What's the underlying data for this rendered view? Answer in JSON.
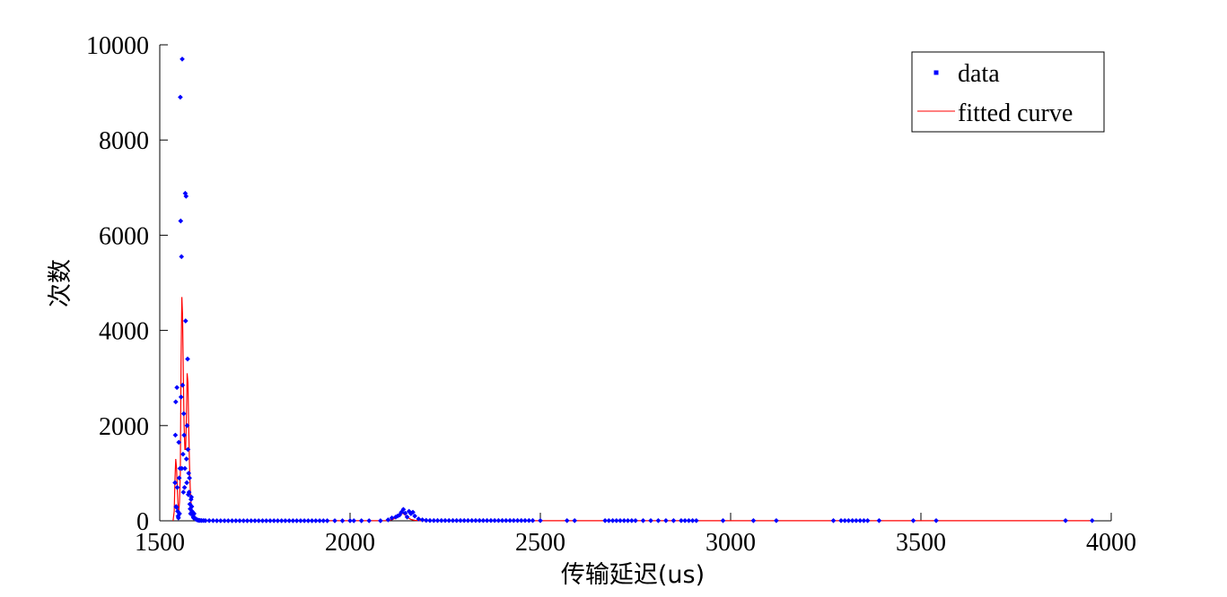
{
  "chart_data": {
    "type": "scatter",
    "title": "",
    "xlabel": "传输延迟(us)",
    "ylabel": "次数",
    "xlim": [
      1500,
      4000
    ],
    "ylim": [
      0,
      10000
    ],
    "xticks": [
      1500,
      2000,
      2500,
      3000,
      3500,
      4000
    ],
    "yticks": [
      0,
      2000,
      4000,
      6000,
      8000,
      10000
    ],
    "grid": false,
    "legend_position": "top-right",
    "colors": {
      "data": "#0000ff",
      "fitted_curve": "#ff0000",
      "axes": "#000000",
      "background": "#ffffff"
    },
    "series": [
      {
        "name": "data",
        "style": "markers",
        "x": [
          1540,
          1541,
          1542,
          1543,
          1544,
          1545,
          1546,
          1547,
          1548,
          1549,
          1550,
          1551,
          1552,
          1553,
          1554,
          1555,
          1556,
          1557,
          1558,
          1559,
          1560,
          1561,
          1562,
          1563,
          1564,
          1565,
          1566,
          1567,
          1568,
          1569,
          1570,
          1571,
          1572,
          1573,
          1574,
          1575,
          1576,
          1577,
          1578,
          1579,
          1580,
          1581,
          1582,
          1583,
          1584,
          1585,
          1586,
          1587,
          1588,
          1589,
          1590,
          1592,
          1594,
          1596,
          1598,
          1600,
          1603,
          1606,
          1610,
          1615,
          1620,
          1630,
          1640,
          1650,
          1660,
          1670,
          1680,
          1690,
          1700,
          1710,
          1720,
          1730,
          1740,
          1750,
          1760,
          1770,
          1780,
          1790,
          1800,
          1810,
          1820,
          1830,
          1840,
          1850,
          1860,
          1870,
          1880,
          1890,
          1900,
          1910,
          1920,
          1930,
          1940,
          1960,
          1980,
          2000,
          2010,
          2030,
          2050,
          2080,
          2100,
          2110,
          2120,
          2125,
          2130,
          2135,
          2140,
          2145,
          2150,
          2155,
          2160,
          2165,
          2170,
          2180,
          2190,
          2200,
          2210,
          2220,
          2230,
          2240,
          2250,
          2260,
          2270,
          2280,
          2290,
          2300,
          2310,
          2320,
          2330,
          2340,
          2350,
          2360,
          2370,
          2380,
          2390,
          2400,
          2410,
          2420,
          2430,
          2440,
          2450,
          2460,
          2470,
          2480,
          2500,
          2570,
          2590,
          2670,
          2680,
          2690,
          2700,
          2710,
          2720,
          2730,
          2740,
          2750,
          2770,
          2790,
          2810,
          2830,
          2850,
          2870,
          2880,
          2890,
          2900,
          2910,
          2980,
          3060,
          3120,
          3270,
          3290,
          3300,
          3310,
          3320,
          3330,
          3340,
          3350,
          3360,
          3390,
          3480,
          3540,
          3880,
          3950
        ],
        "y": [
          800,
          1800,
          2500,
          300,
          280,
          2800,
          700,
          200,
          100,
          60,
          1650,
          900,
          150,
          1100,
          8900,
          6300,
          2600,
          5550,
          1100,
          9700,
          2850,
          1400,
          600,
          2250,
          1800,
          700,
          1100,
          6880,
          4200,
          6820,
          1300,
          800,
          2000,
          3400,
          1500,
          550,
          1000,
          600,
          900,
          350,
          250,
          150,
          450,
          500,
          300,
          200,
          180,
          120,
          80,
          60,
          150,
          60,
          40,
          30,
          20,
          15,
          10,
          8,
          6,
          5,
          4,
          3,
          3,
          2,
          2,
          2,
          2,
          2,
          2,
          2,
          2,
          2,
          2,
          2,
          2,
          2,
          2,
          2,
          2,
          2,
          2,
          2,
          2,
          2,
          2,
          2,
          2,
          2,
          2,
          2,
          2,
          2,
          2,
          2,
          2,
          2,
          2,
          2,
          2,
          2,
          20,
          60,
          80,
          100,
          120,
          180,
          240,
          160,
          80,
          200,
          150,
          180,
          100,
          40,
          20,
          10,
          5,
          5,
          5,
          5,
          5,
          5,
          5,
          5,
          5,
          5,
          5,
          5,
          5,
          5,
          5,
          5,
          5,
          5,
          5,
          5,
          5,
          5,
          5,
          5,
          5,
          5,
          5,
          5,
          3,
          3,
          3,
          3,
          3,
          3,
          3,
          3,
          3,
          3,
          3,
          3,
          3,
          3,
          3,
          3,
          3,
          3,
          3,
          3,
          3,
          3,
          3,
          3,
          3,
          3,
          3,
          3,
          3,
          3,
          3,
          3,
          3,
          3,
          3,
          3,
          3,
          3,
          3
        ]
      },
      {
        "name": "fitted curve",
        "style": "line",
        "x": [
          1535,
          1538,
          1540,
          1542,
          1544,
          1546,
          1548,
          1550,
          1552,
          1554,
          1556,
          1558,
          1560,
          1562,
          1564,
          1566,
          1568,
          1570,
          1572,
          1574,
          1576,
          1578,
          1580,
          1582,
          1584,
          1586,
          1588,
          1590,
          1595,
          1600,
          1610,
          1620,
          1650,
          1700,
          1800,
          1900,
          2000,
          2050,
          2100,
          2110,
          2120,
          2125,
          2130,
          2135,
          2140,
          2145,
          2150,
          2155,
          2160,
          2170,
          2180,
          2200,
          2300,
          2500,
          3000,
          3500,
          3950
        ],
        "y": [
          0,
          200,
          900,
          1300,
          1100,
          700,
          300,
          200,
          400,
          1000,
          3300,
          4700,
          4300,
          3000,
          2000,
          1500,
          1500,
          2200,
          3100,
          2900,
          2000,
          1200,
          700,
          400,
          250,
          160,
          110,
          80,
          40,
          20,
          10,
          5,
          2,
          1,
          1,
          1,
          1,
          1,
          5,
          20,
          60,
          100,
          140,
          160,
          150,
          120,
          80,
          50,
          30,
          10,
          5,
          2,
          1,
          1,
          1,
          1,
          1
        ]
      }
    ]
  }
}
